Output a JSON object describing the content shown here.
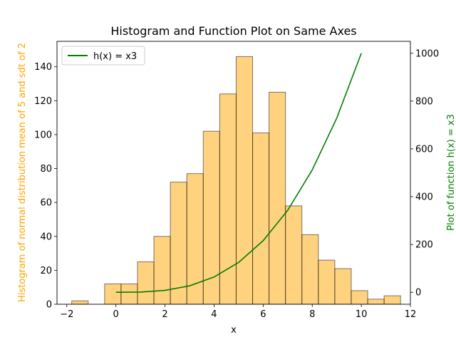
{
  "chart_data": {
    "type": "bar",
    "title": "Histogram and Function Plot on Same Axes",
    "xlabel": "x",
    "ylabel_left": "Histogram of normal distribution mean of 5 and sdt of 2",
    "ylabel_right": "Plot of function h(x) = x3",
    "xlim": [
      -2.4,
      12.0
    ],
    "ylim_left": [
      0,
      155
    ],
    "ylim_right": [
      -50,
      1050
    ],
    "x_ticks": [
      -2,
      0,
      2,
      4,
      6,
      8,
      10,
      12
    ],
    "y_left_ticks": [
      0,
      20,
      40,
      60,
      80,
      100,
      120,
      140
    ],
    "y_right_ticks": [
      0,
      200,
      400,
      600,
      800,
      1000
    ],
    "histogram": {
      "bin_edges": [
        -1.8,
        -1.13,
        -0.46,
        0.21,
        0.88,
        1.55,
        2.22,
        2.89,
        3.56,
        4.23,
        4.9,
        5.57,
        6.24,
        6.91,
        7.58,
        8.25,
        8.92,
        9.59,
        10.26,
        10.93,
        11.6
      ],
      "counts": [
        2,
        0,
        12,
        12,
        25,
        40,
        72,
        77,
        102,
        124,
        146,
        101,
        125,
        58,
        41,
        26,
        21,
        8,
        3,
        5
      ],
      "color": "#ffa500",
      "edge_color": "#000000"
    },
    "series": [
      {
        "name": "h(x) = x3",
        "x": [
          0,
          1,
          2,
          3,
          4,
          5,
          6,
          7,
          8,
          9,
          10
        ],
        "y": [
          0,
          1,
          8,
          27,
          64,
          125,
          216,
          343,
          512,
          729,
          1000
        ],
        "color": "#008000"
      }
    ],
    "legend_position": "upper-left",
    "left_label_color": "#ffa500",
    "right_label_color": "#008000"
  }
}
